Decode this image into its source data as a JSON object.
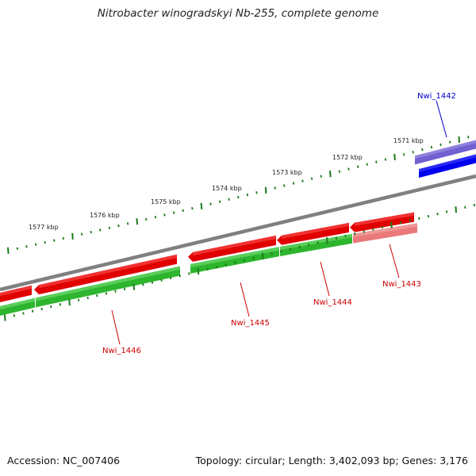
{
  "title": "Nitrobacter winogradskyi Nb-255, complete genome",
  "accession": "Accession: NC_007406",
  "summary": "Topology: circular; Length: 3,402,093 bp; Genes: 3,176",
  "kbp_labels": [
    "1571 kbp",
    "1572 kbp",
    "1573 kbp",
    "1574 kbp",
    "1575 kbp",
    "1576 kbp",
    "1577 kbp"
  ],
  "genes": [
    {
      "id": "Nwi_1442",
      "color": "#0000cc"
    },
    {
      "id": "Nwi_1443",
      "color": "#cc0000"
    },
    {
      "id": "Nwi_1444",
      "color": "#cc0000"
    },
    {
      "id": "Nwi_1445",
      "color": "#cc0000"
    },
    {
      "id": "Nwi_1446",
      "color": "#cc0000"
    }
  ],
  "colors": {
    "forward_strand": "#e00000",
    "forward_highlight": "#ff5a5a",
    "reverse_strand": "#2db52d",
    "reverse_highlight": "#7ee07e",
    "faded_reverse": "#ea7a7a",
    "blue_gene": "#0000ee",
    "blue_gene_faded": "#7060d0",
    "backbone": "#808080",
    "ticks": "#1a7a1a"
  }
}
